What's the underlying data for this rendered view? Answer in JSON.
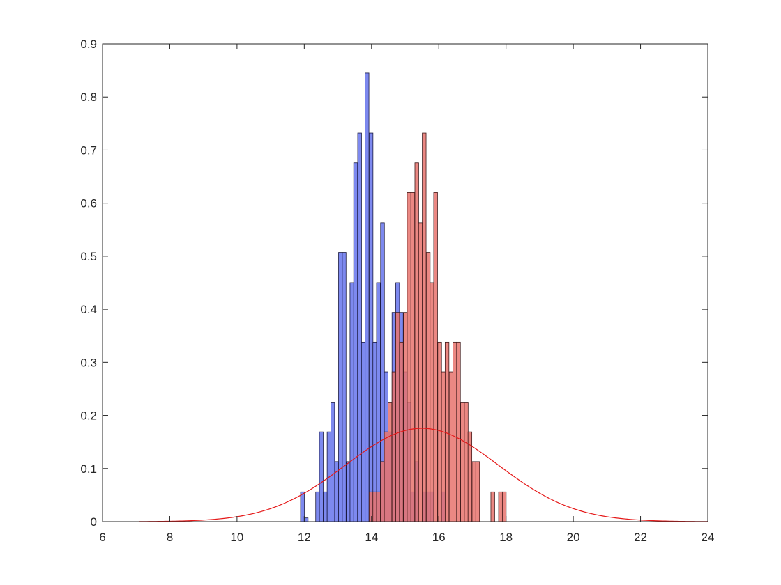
{
  "chart_data": {
    "type": "bar",
    "title": "",
    "xlabel": "",
    "ylabel": "",
    "xlim": [
      6,
      24
    ],
    "ylim": [
      0,
      0.9
    ],
    "xticks": [
      "6",
      "8",
      "10",
      "12",
      "14",
      "16",
      "18",
      "20",
      "22",
      "24"
    ],
    "yticks": [
      "0",
      "0.1",
      "0.2",
      "0.3",
      "0.4",
      "0.5",
      "0.6",
      "0.7",
      "0.8",
      "0.9"
    ],
    "grid": false,
    "bin_width": 0.113,
    "series": [
      {
        "style": "histogram",
        "color": "#6674ec",
        "edge_color": "#1a1a40",
        "bins": [
          [
            11.89,
            0.056
          ],
          [
            12.0,
            0.007
          ],
          [
            12.34,
            0.056
          ],
          [
            12.45,
            0.169
          ],
          [
            12.57,
            0.056
          ],
          [
            12.68,
            0.169
          ],
          [
            12.79,
            0.225
          ],
          [
            12.91,
            0.113
          ],
          [
            13.02,
            0.507
          ],
          [
            13.13,
            0.507
          ],
          [
            13.25,
            0.113
          ],
          [
            13.36,
            0.45
          ],
          [
            13.47,
            0.676
          ],
          [
            13.59,
            0.732
          ],
          [
            13.7,
            0.338
          ],
          [
            13.81,
            0.845
          ],
          [
            13.93,
            0.732
          ],
          [
            14.04,
            0.338
          ],
          [
            14.15,
            0.45
          ],
          [
            14.27,
            0.563
          ],
          [
            14.38,
            0.282
          ],
          [
            14.49,
            0.169
          ],
          [
            14.61,
            0.394
          ],
          [
            14.72,
            0.45
          ],
          [
            14.83,
            0.394
          ],
          [
            14.95,
            0.282
          ],
          [
            15.06,
            0.225
          ],
          [
            15.17,
            0.056
          ],
          [
            15.29,
            0.113
          ],
          [
            15.4,
            0.0
          ],
          [
            15.51,
            0.056
          ],
          [
            15.63,
            0.056
          ],
          [
            15.74,
            0.056
          ],
          [
            16.08,
            0.056
          ]
        ]
      },
      {
        "style": "histogram",
        "color": "#e8736d",
        "edge_color": "#401a1a",
        "bins": [
          [
            13.93,
            0.056
          ],
          [
            14.04,
            0.056
          ],
          [
            14.15,
            0.056
          ],
          [
            14.27,
            0.113
          ],
          [
            14.38,
            0.169
          ],
          [
            14.49,
            0.225
          ],
          [
            14.61,
            0.282
          ],
          [
            14.72,
            0.394
          ],
          [
            14.83,
            0.338
          ],
          [
            14.95,
            0.394
          ],
          [
            15.06,
            0.62
          ],
          [
            15.17,
            0.62
          ],
          [
            15.29,
            0.676
          ],
          [
            15.4,
            0.563
          ],
          [
            15.51,
            0.732
          ],
          [
            15.63,
            0.507
          ],
          [
            15.74,
            0.45
          ],
          [
            15.85,
            0.62
          ],
          [
            15.97,
            0.338
          ],
          [
            16.08,
            0.282
          ],
          [
            16.19,
            0.338
          ],
          [
            16.31,
            0.282
          ],
          [
            16.42,
            0.338
          ],
          [
            16.53,
            0.338
          ],
          [
            16.65,
            0.225
          ],
          [
            16.76,
            0.225
          ],
          [
            16.87,
            0.169
          ],
          [
            16.99,
            0.113
          ],
          [
            17.1,
            0.113
          ],
          [
            17.55,
            0.056
          ],
          [
            17.78,
            0.056
          ],
          [
            17.89,
            0.056
          ]
        ]
      },
      {
        "style": "line",
        "color": "#e51919",
        "function": "normal_pdf",
        "mean": 15.5,
        "sd": 2.27,
        "x_range": [
          7.1,
          24
        ]
      }
    ]
  }
}
